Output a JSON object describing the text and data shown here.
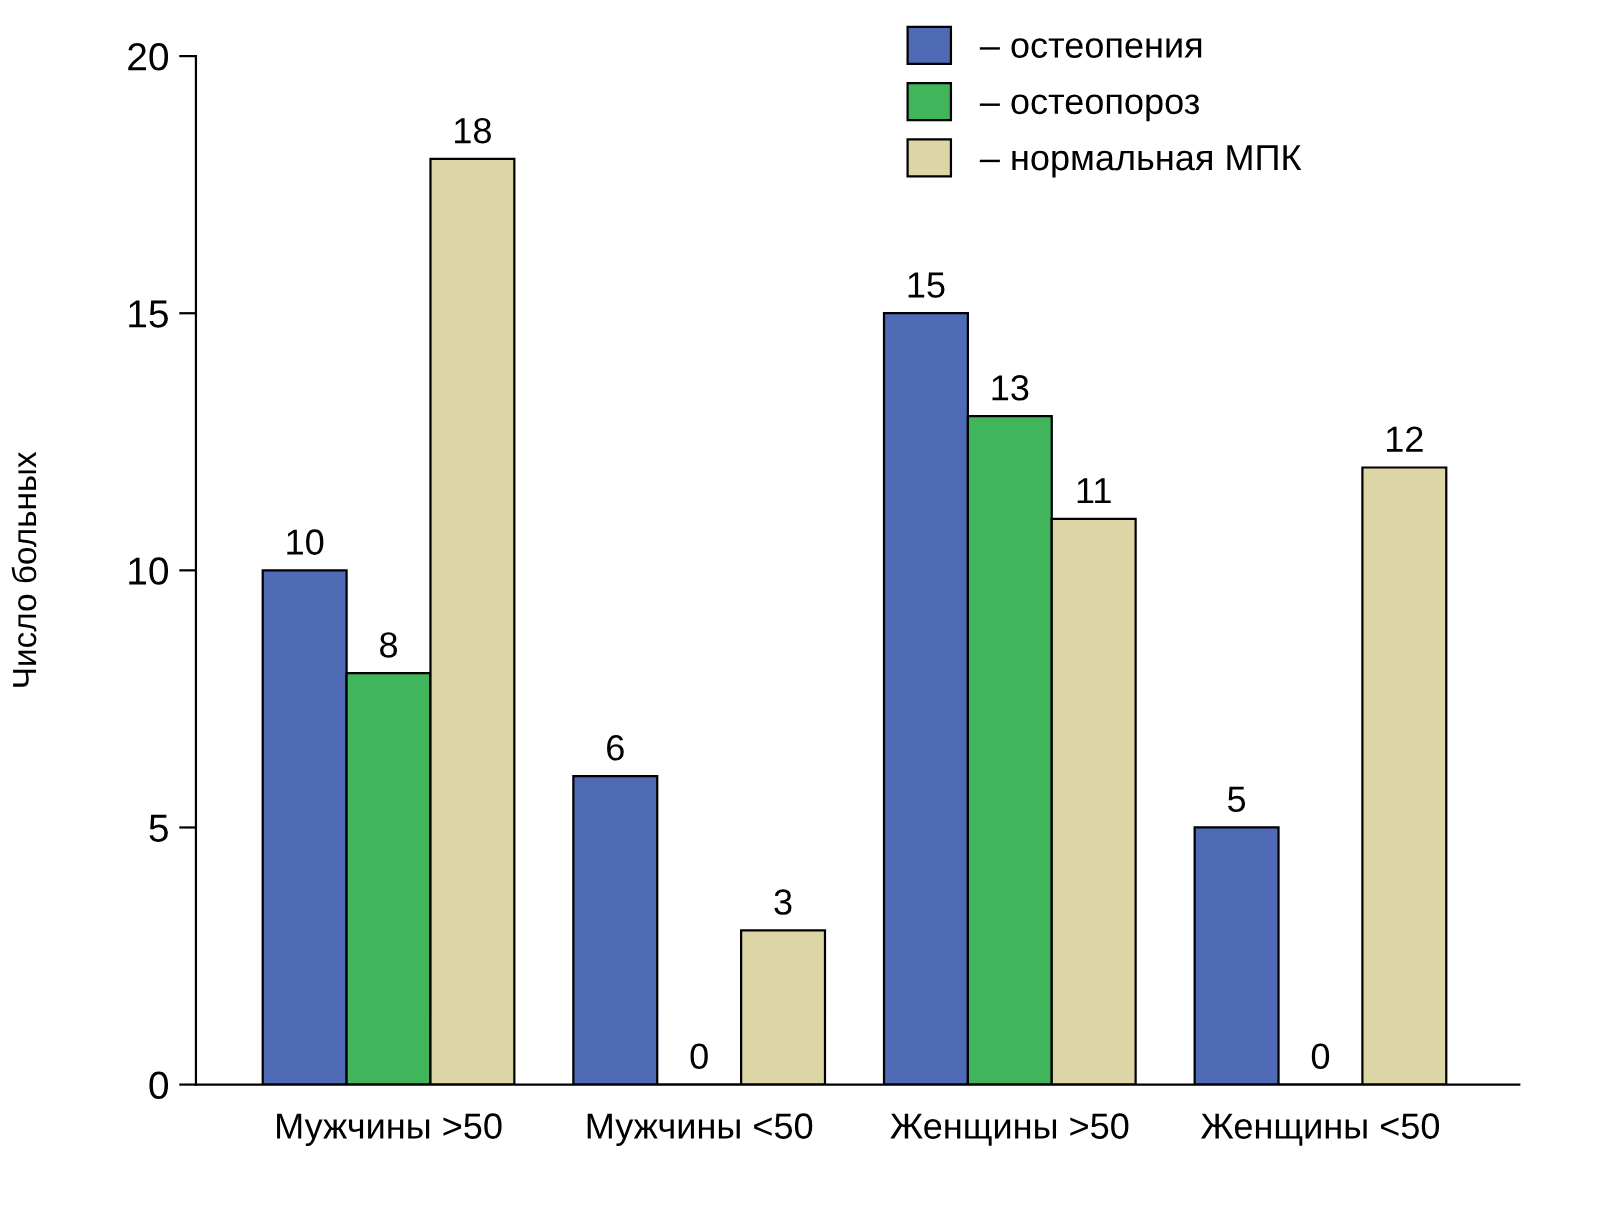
{
  "chart_data": {
    "type": "bar",
    "ylabel": "Число больных",
    "categories": [
      "Мужчины >50",
      "Мужчины <50",
      "Женщины >50",
      "Женщины <50"
    ],
    "series": [
      {
        "name": "– остеопения",
        "color": "#4f6bb5",
        "values": [
          10,
          6,
          15,
          5
        ]
      },
      {
        "name": "– остеопороз",
        "color": "#41b55b",
        "values": [
          8,
          0,
          13,
          0
        ]
      },
      {
        "name": "– нормальная МПК",
        "color": "#dcd6a6",
        "values": [
          18,
          3,
          11,
          12
        ]
      }
    ],
    "ylim": [
      0,
      20
    ],
    "yticks": [
      0,
      5,
      10,
      15,
      20
    ],
    "grid": false,
    "legend": "top right",
    "data_labels": true
  }
}
